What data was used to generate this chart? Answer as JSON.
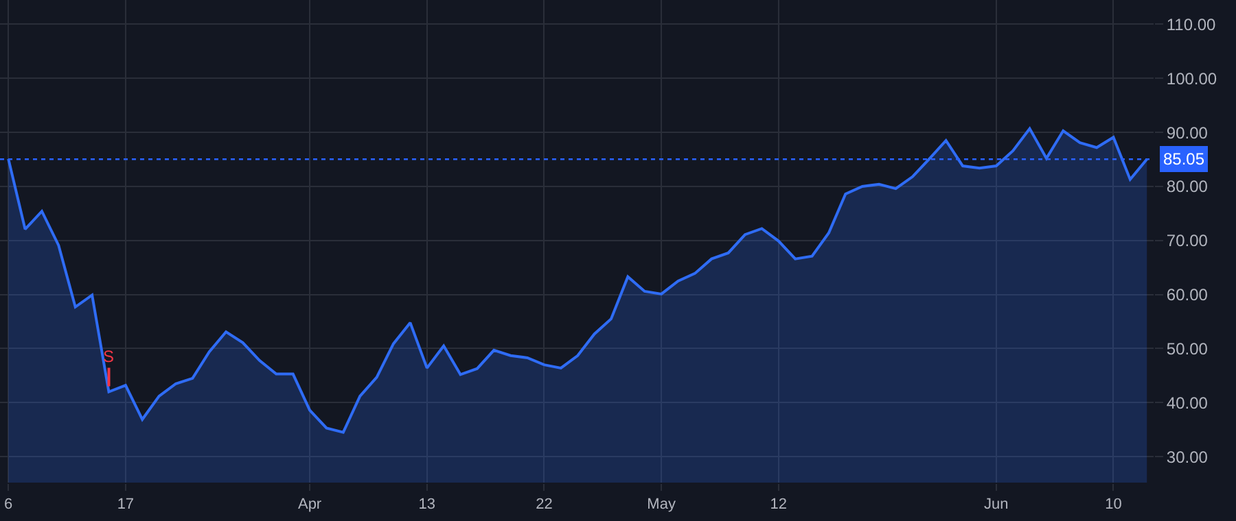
{
  "chart_data": {
    "type": "area",
    "categories": [
      "6",
      null,
      null,
      null,
      null,
      null,
      null,
      "17",
      null,
      null,
      null,
      null,
      null,
      null,
      null,
      null,
      null,
      null,
      "Apr",
      null,
      null,
      null,
      null,
      null,
      null,
      "13",
      null,
      null,
      null,
      null,
      null,
      null,
      "22",
      null,
      null,
      null,
      null,
      null,
      null,
      "May",
      null,
      null,
      null,
      null,
      null,
      null,
      "12",
      null,
      null,
      null,
      null,
      null,
      null,
      null,
      null,
      null,
      null,
      null,
      null,
      "Jun",
      null,
      null,
      null,
      null,
      null,
      null,
      "10",
      null,
      null
    ],
    "series": [
      {
        "color": "#2f6cf5",
        "values": [
          85.1,
          72.1,
          75.4,
          69.1,
          57.7,
          59.9,
          42.0,
          43.2,
          36.9,
          41.2,
          43.5,
          44.5,
          49.4,
          53.1,
          51.1,
          47.8,
          45.3,
          45.3,
          38.6,
          35.3,
          34.5,
          41.2,
          44.7,
          50.9,
          54.8,
          46.4,
          50.5,
          45.2,
          46.3,
          49.7,
          48.7,
          48.3,
          47.0,
          46.4,
          48.7,
          52.7,
          55.5,
          63.3,
          60.6,
          60.1,
          62.5,
          63.9,
          66.6,
          67.7,
          71.1,
          72.2,
          69.9,
          66.6,
          67.1,
          71.4,
          78.6,
          80.0,
          80.4,
          79.6,
          81.8,
          85.1,
          88.5,
          83.8,
          83.4,
          83.8,
          86.6,
          90.7,
          85.2,
          90.3,
          88.1,
          87.2,
          89.1,
          81.3,
          85.05
        ]
      }
    ],
    "ylim": [
      25.2,
      114.5
    ],
    "yticks": [
      {
        "value": 30,
        "label": "30.00"
      },
      {
        "value": 40,
        "label": "40.00"
      },
      {
        "value": 50,
        "label": "50.00"
      },
      {
        "value": 60,
        "label": "60.00"
      },
      {
        "value": 70,
        "label": "70.00"
      },
      {
        "value": 80,
        "label": "80.00"
      },
      {
        "value": 90,
        "label": "90.00"
      },
      {
        "value": 100,
        "label": "100.00"
      },
      {
        "value": 110,
        "label": "110.00"
      }
    ],
    "ref_lines": [
      {
        "axis": "y",
        "value": 85.05,
        "label": "85.05",
        "color": "#2962ff",
        "line_style": "dotted"
      }
    ],
    "annotations": [
      {
        "text": "S",
        "y": 42.0
      }
    ],
    "grid": true,
    "legend": false,
    "marker": "none",
    "line_style": "solid"
  }
}
